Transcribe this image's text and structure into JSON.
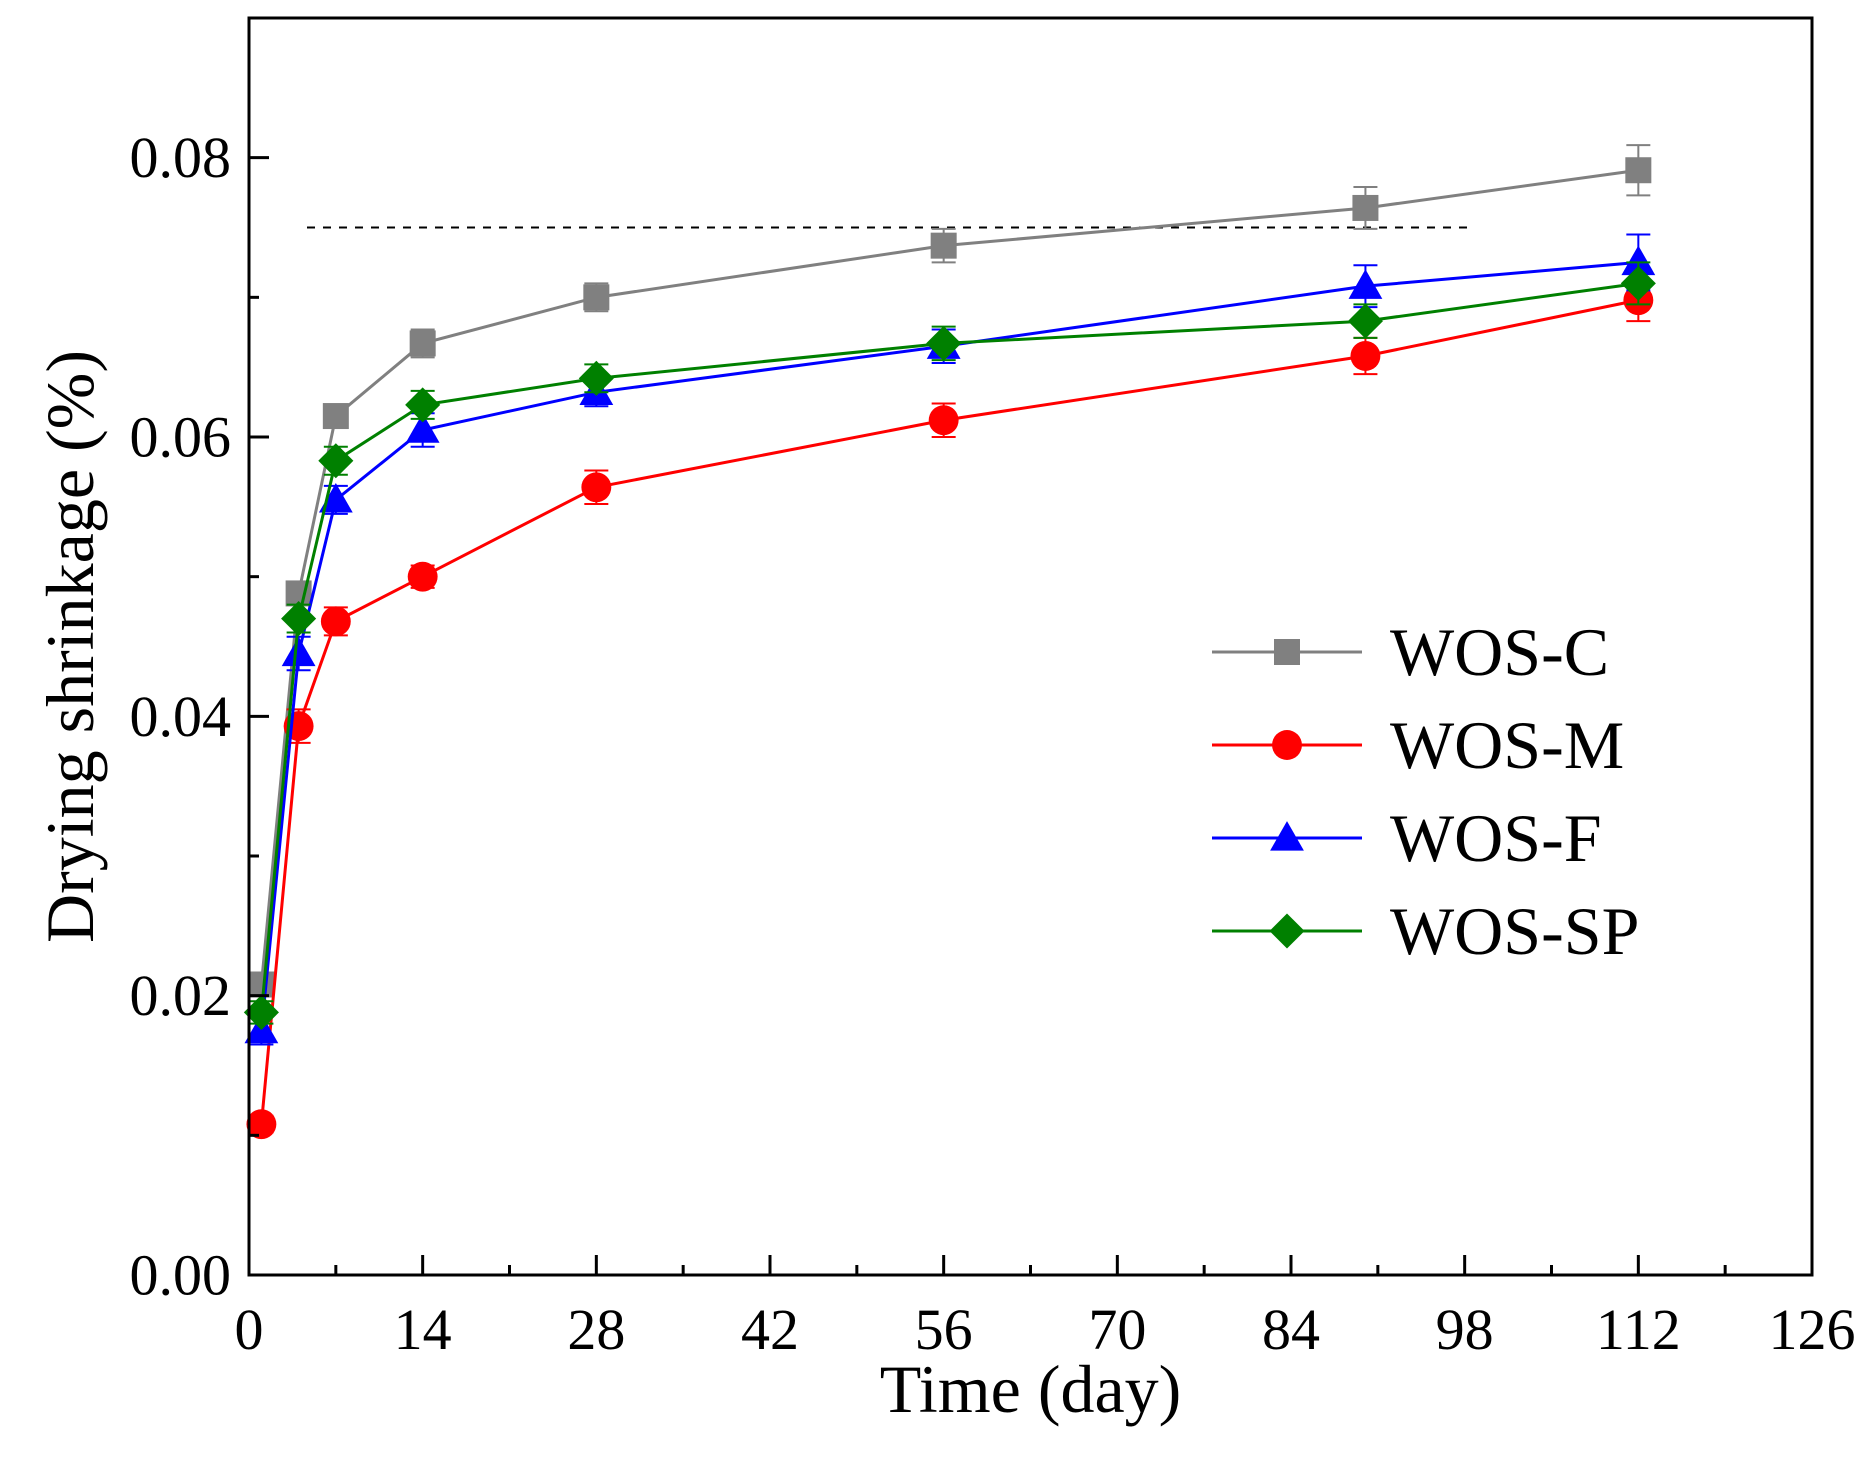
{
  "chart_data": {
    "type": "line",
    "xlabel": "Time (day)",
    "ylabel": "Drying shrinkage (%)",
    "xlim": [
      0,
      126
    ],
    "ylim": [
      0,
      0.09
    ],
    "xticks": [
      0,
      14,
      28,
      42,
      56,
      70,
      84,
      98,
      112,
      126
    ],
    "xtick_labels": [
      "0",
      "14",
      "28",
      "42",
      "56",
      "70",
      "84",
      "98",
      "112",
      "126"
    ],
    "yticks": [
      0,
      0.02,
      0.04,
      0.06,
      0.08
    ],
    "ytick_labels": [
      "0.00",
      "0.02",
      "0.04",
      "0.06",
      "0.08"
    ],
    "reference_line": {
      "y": 0.075,
      "x_range": [
        0,
        98
      ],
      "style": "dashed"
    },
    "x": [
      1,
      4,
      7,
      14,
      28,
      56,
      90,
      112
    ],
    "series": [
      {
        "name": "WOS-C",
        "color": "#808080",
        "marker": "square",
        "values": [
          0.0208,
          0.0488,
          0.0615,
          0.0667,
          0.07,
          0.0737,
          0.0764,
          0.0791
        ],
        "errors": [
          0.0008,
          0.0008,
          0.0008,
          0.001,
          0.001,
          0.0012,
          0.0015,
          0.0018
        ]
      },
      {
        "name": "WOS-M",
        "color": "#ff0000",
        "marker": "circle",
        "values": [
          0.0108,
          0.0393,
          0.0468,
          0.05,
          0.0564,
          0.0612,
          0.0658,
          0.0698
        ],
        "errors": [
          0.0006,
          0.0012,
          0.001,
          0.0008,
          0.0012,
          0.0012,
          0.0013,
          0.0015
        ]
      },
      {
        "name": "WOS-F",
        "color": "#0000ff",
        "marker": "triangle",
        "values": [
          0.0175,
          0.0445,
          0.0555,
          0.0605,
          0.0632,
          0.0665,
          0.0708,
          0.0725
        ],
        "errors": [
          0.001,
          0.0012,
          0.001,
          0.0012,
          0.001,
          0.0012,
          0.0015,
          0.002
        ]
      },
      {
        "name": "WOS-SP",
        "color": "#008000",
        "marker": "diamond",
        "values": [
          0.0188,
          0.047,
          0.0583,
          0.0623,
          0.0642,
          0.0667,
          0.0683,
          0.071
        ],
        "errors": [
          0.0008,
          0.001,
          0.001,
          0.001,
          0.001,
          0.0012,
          0.0012,
          0.0015
        ]
      }
    ],
    "legend": {
      "placement": "center-right",
      "entries": [
        "WOS-C",
        "WOS-M",
        "WOS-F",
        "WOS-SP"
      ]
    }
  }
}
